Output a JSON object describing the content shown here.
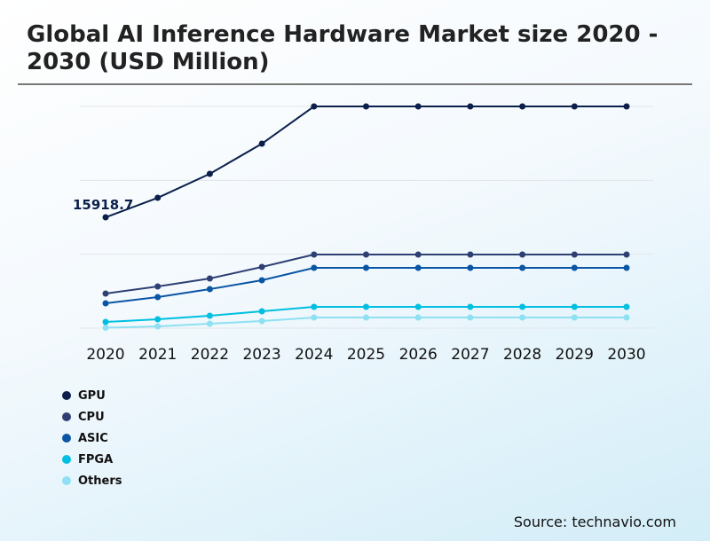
{
  "chart_data": {
    "type": "line",
    "title": "Global AI Inference Hardware Market size 2020 - 2030 (USD Million)",
    "x": [
      "2020",
      "2021",
      "2022",
      "2023",
      "2024",
      "2025",
      "2026",
      "2027",
      "2028",
      "2029",
      "2030"
    ],
    "ylim": [
      0,
      31840
    ],
    "grid": true,
    "legend_position": "bottom-left",
    "annotation": {
      "series": "GPU",
      "x": "2020",
      "text": "15918.7"
    },
    "series": [
      {
        "name": "GPU",
        "color": "#0b1f4a",
        "values": [
          15918.7,
          18720,
          22160,
          26490,
          31840,
          31840,
          31840,
          31840,
          31840,
          31840,
          31840
        ]
      },
      {
        "name": "CPU",
        "color": "#2e3f73",
        "values": [
          4970,
          5990,
          7130,
          8790,
          10570,
          10570,
          10570,
          10570,
          10570,
          10570,
          10570
        ]
      },
      {
        "name": "ASIC",
        "color": "#0a56a4",
        "values": [
          3570,
          4460,
          5600,
          6880,
          8660,
          8660,
          8660,
          8660,
          8660,
          8660,
          8660
        ]
      },
      {
        "name": "FPGA",
        "color": "#00bfe0",
        "values": [
          890,
          1270,
          1780,
          2420,
          3060,
          3060,
          3060,
          3060,
          3060,
          3060,
          3060
        ]
      },
      {
        "name": "Others",
        "color": "#8ee0f2",
        "values": [
          60,
          250,
          640,
          1020,
          1530,
          1530,
          1530,
          1530,
          1530,
          1530,
          1530
        ]
      }
    ]
  },
  "source": "Source: technavio.com"
}
